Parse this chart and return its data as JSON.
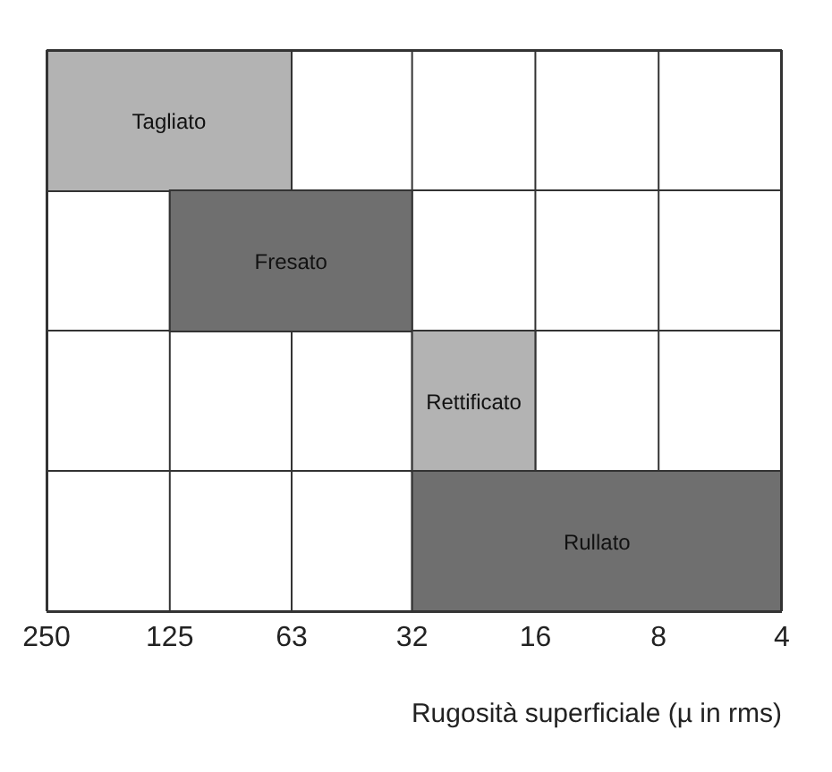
{
  "chart_data": {
    "type": "bar",
    "orientation": "horizontal",
    "xlabel": "Rugosità superficiale (µ in rms)",
    "categories": [
      "Tagliato",
      "Fresato",
      "Rettificato",
      "Rullato"
    ],
    "base": [
      63,
      32,
      16,
      4
    ],
    "values": [
      187,
      93,
      16,
      28
    ],
    "colors": [
      "#b3b3b3",
      "#6f6f6f",
      "#b3b3b3",
      "#6f6f6f"
    ],
    "log": "x",
    "xlim": [
      250,
      4
    ],
    "xticks": [
      250,
      125,
      63,
      32,
      16,
      8,
      4
    ],
    "grid": true,
    "tick_labels": "x"
  }
}
